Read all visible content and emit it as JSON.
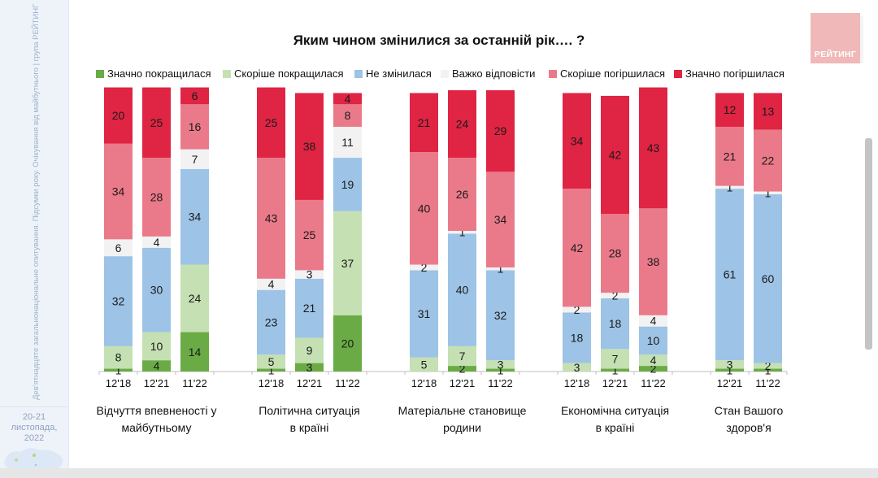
{
  "sidebar": {
    "vertical_text": "Дев'ятнадцяте загальнонаціональне опитування. Підсумки року. Очікування від майбутнього | група РЕЙТИНГ",
    "date_line1": "20-21",
    "date_line2": "листопада, 2022"
  },
  "logo": {
    "text": "РЕЙТИНГ",
    "color": "#f0b8b8"
  },
  "chart_data": {
    "type": "bar",
    "stacked": true,
    "percent": true,
    "title": "Яким чином змінилися за останній рік…. ?",
    "xlabel": "",
    "ylabel": "",
    "ylim": [
      0,
      100
    ],
    "grid": false,
    "legend_position": "top",
    "series": [
      {
        "name": "Значно покращилася",
        "color": "#6aab45"
      },
      {
        "name": "Скоріше покращилася",
        "color": "#c5e0b3"
      },
      {
        "name": "Не змінилася",
        "color": "#9dc3e6"
      },
      {
        "name": "Важко відповісти",
        "color": "#f2f2f2"
      },
      {
        "name": "Скоріше погіршилася",
        "color": "#ea7a8a"
      },
      {
        "name": "Значно погіршилася",
        "color": "#e02443"
      }
    ],
    "groups": [
      {
        "label_line1": "Відчуття впевненості у",
        "label_line2": "майбутньому",
        "bars": [
          {
            "period": "12'18",
            "values": [
              1,
              8,
              32,
              6,
              34,
              20
            ]
          },
          {
            "period": "12'21",
            "values": [
              4,
              10,
              30,
              4,
              28,
              25
            ]
          },
          {
            "period": "11'22",
            "values": [
              14,
              24,
              34,
              7,
              16,
              6
            ]
          }
        ]
      },
      {
        "label_line1": "Політична ситуація",
        "label_line2": "в країні",
        "bars": [
          {
            "period": "12'18",
            "values": [
              1,
              5,
              23,
              4,
              43,
              25
            ]
          },
          {
            "period": "12'21",
            "values": [
              3,
              9,
              21,
              3,
              25,
              38
            ]
          },
          {
            "period": "11'22",
            "values": [
              20,
              37,
              19,
              11,
              8,
              4
            ]
          }
        ]
      },
      {
        "label_line1": "Матеріальне становище",
        "label_line2": "родини",
        "bars": [
          {
            "period": "12'18",
            "values": [
              0,
              5,
              31,
              2,
              40,
              21
            ]
          },
          {
            "period": "12'21",
            "values": [
              2,
              7,
              40,
              1,
              26,
              24
            ]
          },
          {
            "period": "11'22",
            "values": [
              1,
              3,
              32,
              1,
              34,
              29
            ]
          }
        ]
      },
      {
        "label_line1": "Економічна ситуація",
        "label_line2": "в країні",
        "bars": [
          {
            "period": "12'18",
            "values": [
              0,
              3,
              18,
              2,
              42,
              34
            ]
          },
          {
            "period": "12'21",
            "values": [
              1,
              7,
              18,
              2,
              28,
              42
            ]
          },
          {
            "period": "11'22",
            "values": [
              2,
              4,
              10,
              4,
              38,
              43
            ]
          }
        ]
      },
      {
        "label_line1": "Стан Вашого",
        "label_line2": "здоров'я",
        "bars": [
          {
            "period": "12'21",
            "values": [
              1,
              3,
              61,
              1,
              21,
              12
            ]
          },
          {
            "period": "11'22",
            "values": [
              1,
              2,
              60,
              1,
              22,
              13
            ]
          }
        ]
      }
    ]
  }
}
